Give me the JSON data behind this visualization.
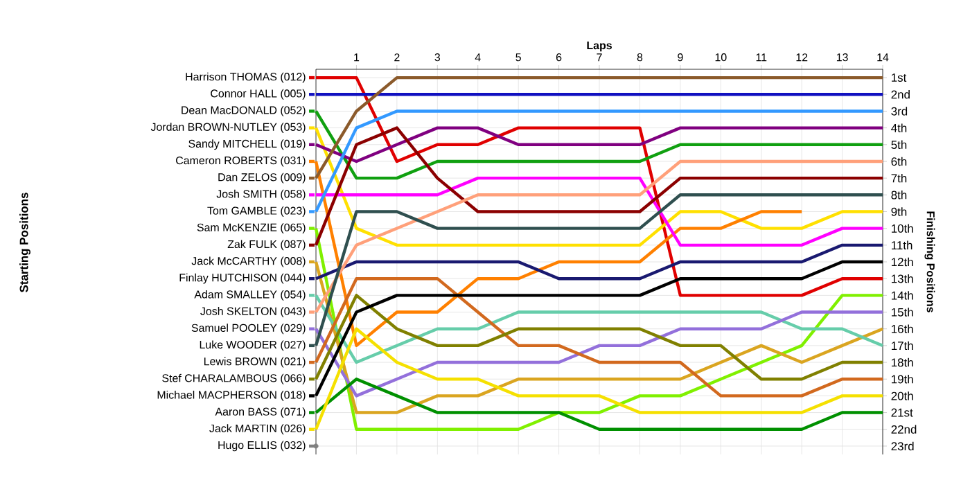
{
  "chart_data": {
    "type": "line",
    "xlabel": "Laps",
    "ylabel": "Finishing Positions",
    "annotations": [
      "Starting Positions"
    ],
    "x": [
      0,
      1,
      2,
      3,
      4,
      5,
      6,
      7,
      8,
      9,
      10,
      11,
      12,
      13,
      14
    ],
    "xlim": [
      0,
      14
    ],
    "xticks": [
      1,
      2,
      3,
      4,
      5,
      6,
      7,
      8,
      9,
      10,
      11,
      12,
      13,
      14
    ],
    "ylim": [
      23.5,
      0.5
    ],
    "yticks": [
      {
        "value": 1,
        "label": "1st"
      },
      {
        "value": 2,
        "label": "2nd"
      },
      {
        "value": 3,
        "label": "3rd"
      },
      {
        "value": 4,
        "label": "4th"
      },
      {
        "value": 5,
        "label": "5th"
      },
      {
        "value": 6,
        "label": "6th"
      },
      {
        "value": 7,
        "label": "7th"
      },
      {
        "value": 8,
        "label": "8th"
      },
      {
        "value": 9,
        "label": "9th"
      },
      {
        "value": 10,
        "label": "10th"
      },
      {
        "value": 11,
        "label": "11th"
      },
      {
        "value": 12,
        "label": "12th"
      },
      {
        "value": 13,
        "label": "13th"
      },
      {
        "value": 14,
        "label": "14th"
      },
      {
        "value": 15,
        "label": "15th"
      },
      {
        "value": 16,
        "label": "16th"
      },
      {
        "value": 17,
        "label": "17th"
      },
      {
        "value": 18,
        "label": "18th"
      },
      {
        "value": 19,
        "label": "19th"
      },
      {
        "value": 20,
        "label": "20th"
      },
      {
        "value": 21,
        "label": "21st"
      },
      {
        "value": 22,
        "label": "22nd"
      },
      {
        "value": 23,
        "label": "23rd"
      }
    ],
    "grid": true,
    "line_style": "solid",
    "legend": "left",
    "series": [
      {
        "name": "Harrison THOMAS (012)",
        "color": "#e00000",
        "values": [
          1,
          1,
          6,
          5,
          5,
          4,
          4,
          4,
          4,
          14,
          14,
          14,
          14,
          13,
          13
        ]
      },
      {
        "name": "Connor HALL (005)",
        "color": "#1010c0",
        "values": [
          2,
          2,
          2,
          2,
          2,
          2,
          2,
          2,
          2,
          2,
          2,
          2,
          2,
          2,
          2
        ]
      },
      {
        "name": "Dean MacDONALD (052)",
        "color": "#10a010",
        "values": [
          3,
          7,
          7,
          6,
          6,
          6,
          6,
          6,
          6,
          5,
          5,
          5,
          5,
          5,
          5
        ]
      },
      {
        "name": "Jordan BROWN-NUTLEY (053)",
        "color": "#ffe000",
        "values": [
          4,
          10,
          11,
          11,
          11,
          11,
          11,
          11,
          11,
          9,
          9,
          10,
          10,
          9,
          9
        ]
      },
      {
        "name": "Sandy MITCHELL (019)",
        "color": "#800080",
        "values": [
          5,
          6,
          5,
          4,
          4,
          5,
          5,
          5,
          5,
          4,
          4,
          4,
          4,
          4,
          4
        ]
      },
      {
        "name": "Cameron ROBERTS (031)",
        "color": "#ff8000",
        "values": [
          6,
          17,
          15,
          15,
          13,
          13,
          12,
          12,
          12,
          10,
          10,
          9,
          9,
          null,
          null
        ]
      },
      {
        "name": "Dan ZELOS (009)",
        "color": "#8b5a2b",
        "values": [
          7,
          3,
          1,
          1,
          1,
          1,
          1,
          1,
          1,
          1,
          1,
          1,
          1,
          1,
          1
        ]
      },
      {
        "name": "Josh SMITH (058)",
        "color": "#ff00ff",
        "values": [
          8,
          8,
          8,
          8,
          7,
          7,
          7,
          7,
          7,
          11,
          11,
          11,
          11,
          10,
          10
        ]
      },
      {
        "name": "Tom GAMBLE (023)",
        "color": "#3399ff",
        "values": [
          9,
          4,
          3,
          3,
          3,
          3,
          3,
          3,
          3,
          3,
          3,
          3,
          3,
          3,
          3
        ]
      },
      {
        "name": "Sam McKENZIE (065)",
        "color": "#80f000",
        "values": [
          10,
          22,
          22,
          22,
          22,
          22,
          21,
          21,
          20,
          20,
          19,
          18,
          17,
          14,
          14
        ]
      },
      {
        "name": "Zak FULK (087)",
        "color": "#8b0000",
        "values": [
          11,
          5,
          4,
          7,
          9,
          9,
          9,
          9,
          9,
          7,
          7,
          7,
          7,
          7,
          7
        ]
      },
      {
        "name": "Jack McCARTHY (008)",
        "color": "#daa520",
        "values": [
          12,
          21,
          21,
          20,
          20,
          19,
          19,
          19,
          19,
          19,
          18,
          17,
          18,
          17,
          16
        ]
      },
      {
        "name": "Finlay HUTCHISON (044)",
        "color": "#191970",
        "values": [
          13,
          12,
          12,
          12,
          12,
          12,
          13,
          13,
          13,
          12,
          12,
          12,
          12,
          11,
          11
        ]
      },
      {
        "name": "Adam SMALLEY (054)",
        "color": "#66cdaa",
        "values": [
          14,
          18,
          17,
          16,
          16,
          15,
          15,
          15,
          15,
          15,
          15,
          15,
          16,
          16,
          17
        ]
      },
      {
        "name": "Josh SKELTON (043)",
        "color": "#ffa07a",
        "values": [
          15,
          11,
          10,
          9,
          8,
          8,
          8,
          8,
          8,
          6,
          6,
          6,
          6,
          6,
          6
        ]
      },
      {
        "name": "Samuel POOLEY (029)",
        "color": "#9370db",
        "values": [
          16,
          20,
          19,
          18,
          18,
          18,
          18,
          17,
          17,
          16,
          16,
          16,
          15,
          15,
          15
        ]
      },
      {
        "name": "Luke WOODER (027)",
        "color": "#2f4f4f",
        "values": [
          17,
          9,
          9,
          10,
          10,
          10,
          10,
          10,
          10,
          8,
          8,
          8,
          8,
          8,
          8
        ]
      },
      {
        "name": "Lewis BROWN (021)",
        "color": "#d2691e",
        "values": [
          18,
          13,
          13,
          13,
          15,
          17,
          17,
          18,
          18,
          18,
          20,
          20,
          20,
          19,
          19
        ]
      },
      {
        "name": "Stef CHARALAMBOUS (066)",
        "color": "#808000",
        "values": [
          19,
          14,
          16,
          17,
          17,
          16,
          16,
          16,
          16,
          17,
          17,
          19,
          19,
          18,
          18
        ]
      },
      {
        "name": "Michael MACPHERSON (018)",
        "color": "#000000",
        "values": [
          20,
          15,
          14,
          14,
          14,
          14,
          14,
          14,
          14,
          13,
          13,
          13,
          13,
          12,
          12
        ]
      },
      {
        "name": "Aaron BASS (071)",
        "color": "#009000",
        "values": [
          21,
          19,
          20,
          21,
          21,
          21,
          21,
          22,
          22,
          22,
          22,
          22,
          22,
          21,
          21
        ]
      },
      {
        "name": "Jack MARTIN (026)",
        "color": "#f5e000",
        "values": [
          22,
          16,
          18,
          19,
          19,
          20,
          20,
          20,
          21,
          21,
          21,
          21,
          21,
          20,
          20
        ]
      },
      {
        "name": "Hugo ELLIS (032)",
        "color": "#808080",
        "marker": "circle",
        "values": [
          23,
          null,
          null,
          null,
          null,
          null,
          null,
          null,
          null,
          null,
          null,
          null,
          null,
          null,
          null
        ]
      }
    ]
  }
}
